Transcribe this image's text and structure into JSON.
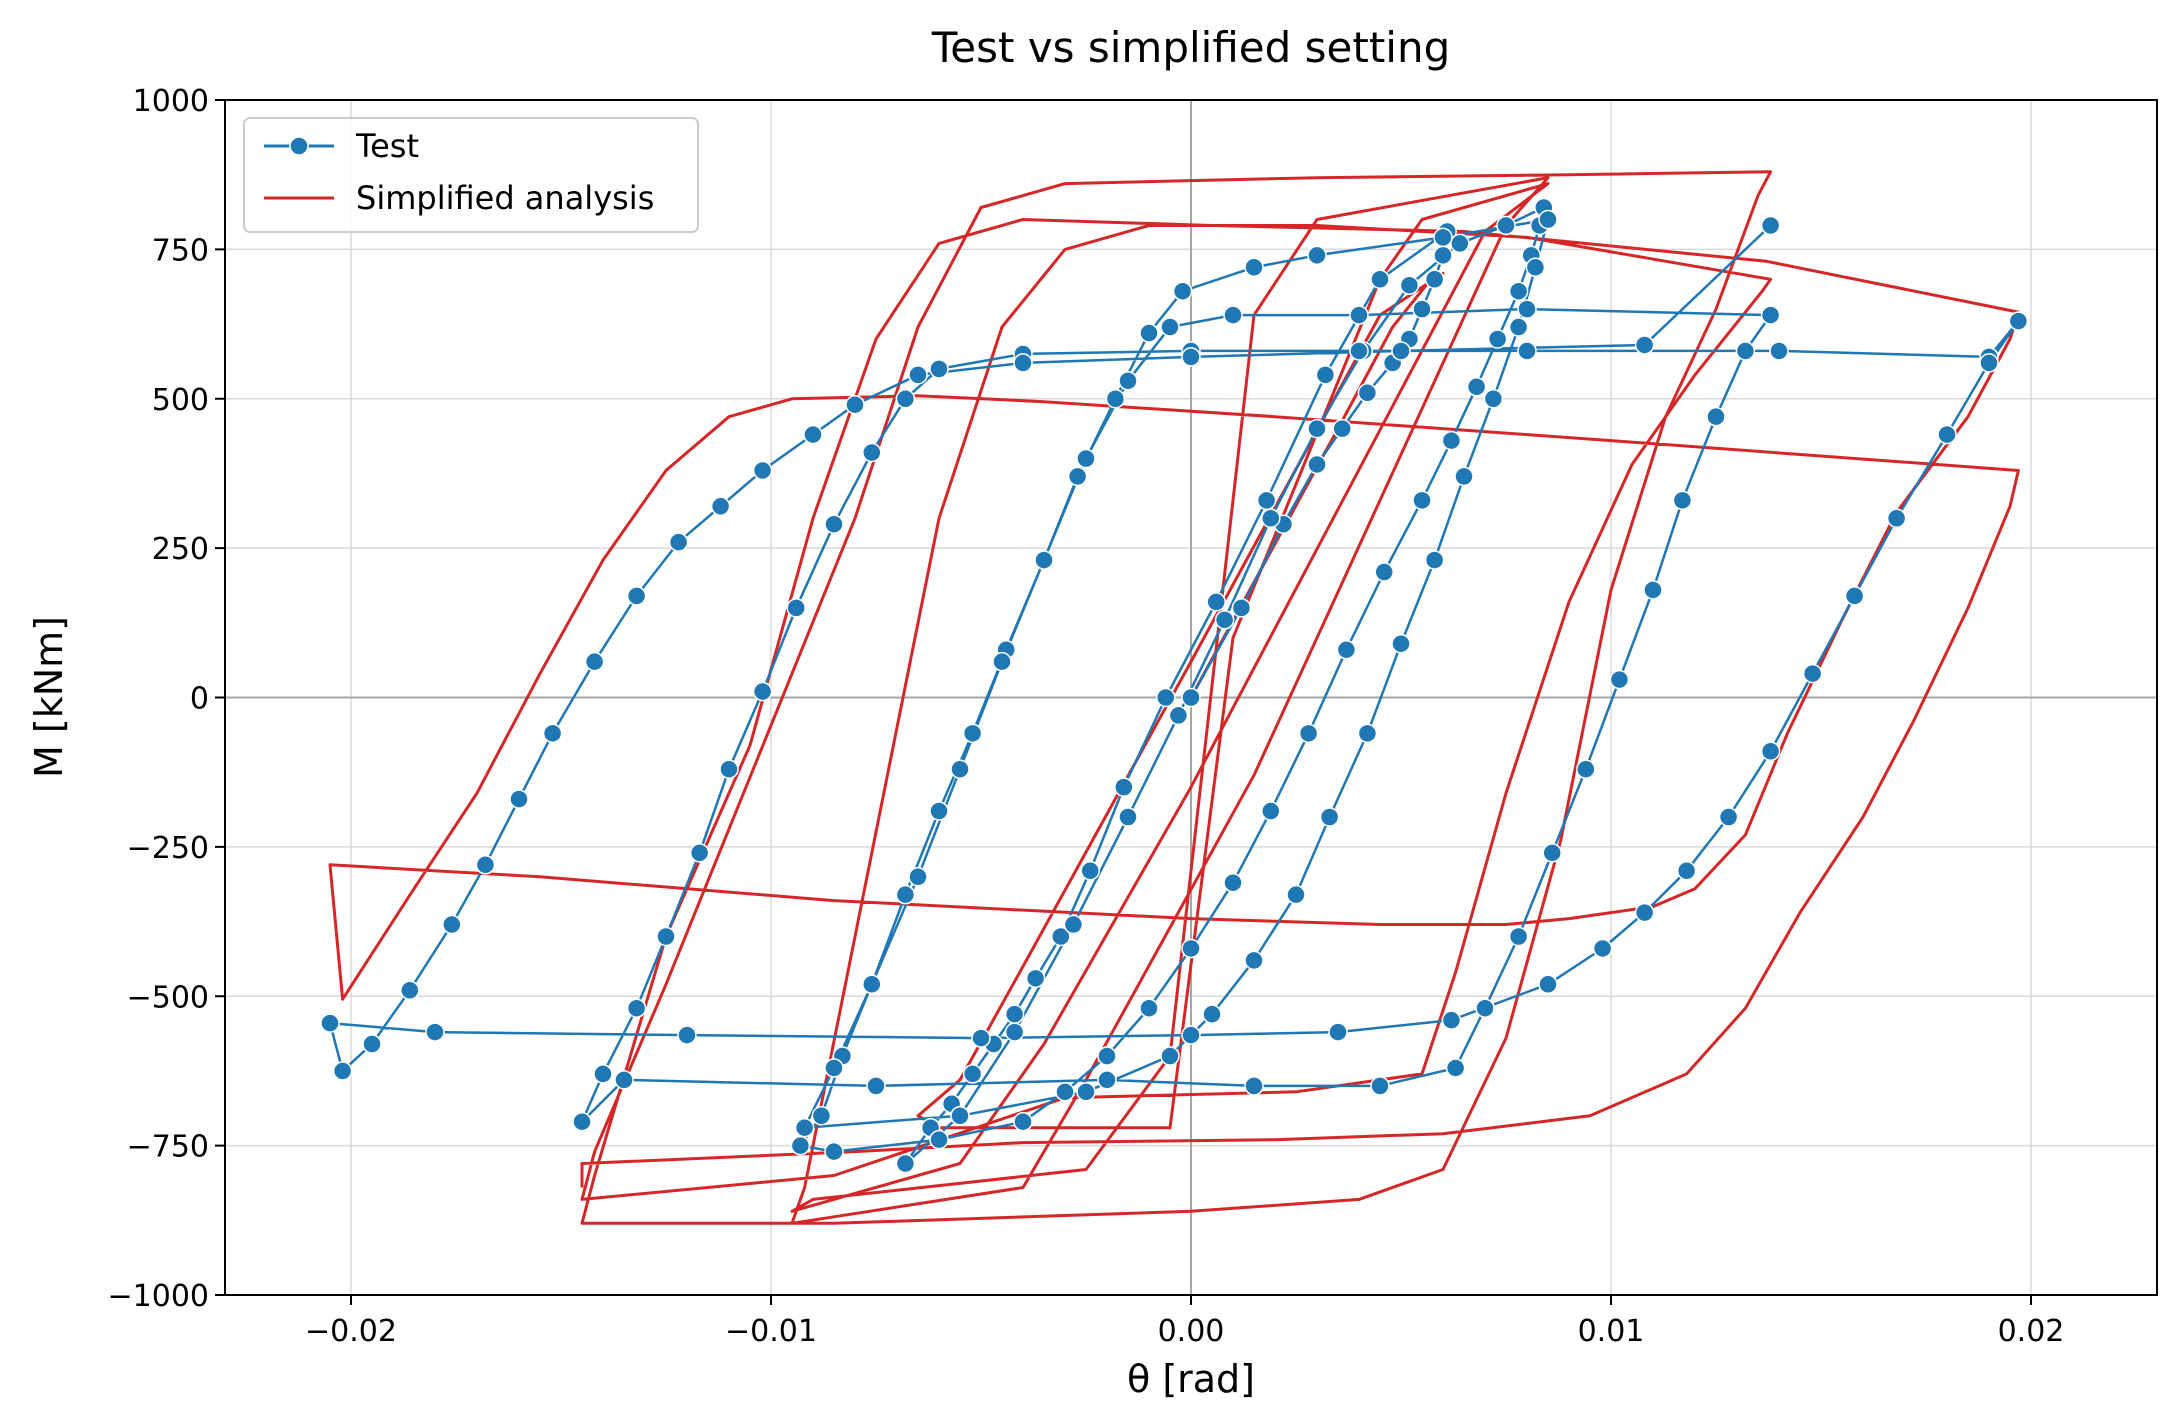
{
  "chart_data": {
    "type": "line",
    "title": "Test vs simplified setting",
    "xlabel": "θ [rad]",
    "ylabel": "M [kNm]",
    "xlim": [
      -0.023,
      0.023
    ],
    "ylim": [
      -1000,
      1000
    ],
    "xticks": [
      -0.02,
      -0.01,
      0.0,
      0.01,
      0.02
    ],
    "xtick_labels": [
      "−0.02",
      "−0.01",
      "0.00",
      "0.01",
      "0.02"
    ],
    "yticks": [
      -1000,
      -750,
      -500,
      -250,
      0,
      250,
      500,
      750,
      1000
    ],
    "ytick_labels": [
      "−1000",
      "−750",
      "−500",
      "−250",
      "0",
      "250",
      "500",
      "750",
      "1000"
    ],
    "grid": true,
    "zero_lines": true,
    "legend_position": "top-left",
    "series": [
      {
        "name": "Test",
        "color": "#1f77b4",
        "marker": "circle",
        "points": [
          [
            0.0,
            0
          ],
          [
            0.0012,
            150
          ],
          [
            0.0022,
            290
          ],
          [
            0.003,
            390
          ],
          [
            0.0036,
            450
          ],
          [
            0.0042,
            510
          ],
          [
            0.0048,
            560
          ],
          [
            0.0052,
            600
          ],
          [
            0.0055,
            650
          ],
          [
            0.0058,
            700
          ],
          [
            0.006,
            740
          ],
          [
            0.0061,
            780
          ],
          [
            0.0045,
            700
          ],
          [
            0.0032,
            540
          ],
          [
            0.0018,
            330
          ],
          [
            0.0006,
            160
          ],
          [
            -0.0006,
            0
          ],
          [
            -0.0016,
            -150
          ],
          [
            -0.0024,
            -290
          ],
          [
            -0.0031,
            -400
          ],
          [
            -0.0037,
            -470
          ],
          [
            -0.0042,
            -530
          ],
          [
            -0.0047,
            -580
          ],
          [
            -0.0052,
            -630
          ],
          [
            -0.0057,
            -680
          ],
          [
            -0.0062,
            -720
          ],
          [
            -0.0068,
            -780
          ],
          [
            -0.0055,
            -700
          ],
          [
            -0.0042,
            -560
          ],
          [
            -0.0028,
            -380
          ],
          [
            -0.0015,
            -200
          ],
          [
            -0.0003,
            -30
          ],
          [
            0.0008,
            130
          ],
          [
            0.0019,
            300
          ],
          [
            0.003,
            450
          ],
          [
            0.0041,
            580
          ],
          [
            0.0052,
            690
          ],
          [
            0.0064,
            760
          ],
          [
            0.0075,
            790
          ],
          [
            0.0084,
            820
          ],
          [
            0.0083,
            790
          ],
          [
            0.0081,
            740
          ],
          [
            0.0078,
            680
          ],
          [
            0.0073,
            600
          ],
          [
            0.0068,
            520
          ],
          [
            0.0062,
            430
          ],
          [
            0.0055,
            330
          ],
          [
            0.0046,
            210
          ],
          [
            0.0037,
            80
          ],
          [
            0.0028,
            -60
          ],
          [
            0.0019,
            -190
          ],
          [
            0.001,
            -310
          ],
          [
            0.0,
            -420
          ],
          [
            -0.001,
            -520
          ],
          [
            -0.002,
            -600
          ],
          [
            -0.003,
            -660
          ],
          [
            -0.004,
            -710
          ],
          [
            -0.006,
            -740
          ],
          [
            -0.0085,
            -760
          ],
          [
            -0.0093,
            -750
          ],
          [
            -0.0088,
            -700
          ],
          [
            -0.0083,
            -600
          ],
          [
            -0.0076,
            -480
          ],
          [
            -0.0068,
            -330
          ],
          [
            -0.006,
            -190
          ],
          [
            -0.0052,
            -60
          ],
          [
            -0.0044,
            80
          ],
          [
            -0.0035,
            230
          ],
          [
            -0.0027,
            370
          ],
          [
            -0.0018,
            500
          ],
          [
            -0.001,
            610
          ],
          [
            -0.0002,
            680
          ],
          [
            0.0015,
            720
          ],
          [
            0.003,
            740
          ],
          [
            0.006,
            770
          ],
          [
            0.0085,
            800
          ],
          [
            0.0082,
            720
          ],
          [
            0.0078,
            620
          ],
          [
            0.0072,
            500
          ],
          [
            0.0065,
            370
          ],
          [
            0.0058,
            230
          ],
          [
            0.005,
            90
          ],
          [
            0.0042,
            -60
          ],
          [
            0.0033,
            -200
          ],
          [
            0.0025,
            -330
          ],
          [
            0.0015,
            -440
          ],
          [
            0.0005,
            -530
          ],
          [
            -0.0005,
            -600
          ],
          [
            -0.0025,
            -660
          ],
          [
            -0.0055,
            -700
          ],
          [
            -0.0092,
            -720
          ],
          [
            -0.0085,
            -620
          ],
          [
            -0.0076,
            -480
          ],
          [
            -0.0065,
            -300
          ],
          [
            -0.0055,
            -120
          ],
          [
            -0.0045,
            60
          ],
          [
            -0.0035,
            230
          ],
          [
            -0.0025,
            400
          ],
          [
            -0.0015,
            530
          ],
          [
            -0.0005,
            620
          ],
          [
            0.001,
            640
          ],
          [
            0.004,
            640
          ],
          [
            0.008,
            650
          ],
          [
            0.0138,
            640
          ],
          [
            0.0132,
            580
          ],
          [
            0.0125,
            470
          ],
          [
            0.0117,
            330
          ],
          [
            0.011,
            180
          ],
          [
            0.0102,
            30
          ],
          [
            0.0094,
            -120
          ],
          [
            0.0086,
            -260
          ],
          [
            0.0078,
            -400
          ],
          [
            0.007,
            -520
          ],
          [
            0.0063,
            -620
          ],
          [
            0.0045,
            -650
          ],
          [
            0.0015,
            -650
          ],
          [
            -0.002,
            -640
          ],
          [
            -0.0075,
            -650
          ],
          [
            -0.0135,
            -640
          ],
          [
            -0.0145,
            -710
          ],
          [
            -0.014,
            -630
          ],
          [
            -0.0132,
            -520
          ],
          [
            -0.0125,
            -400
          ],
          [
            -0.0117,
            -260
          ],
          [
            -0.011,
            -120
          ],
          [
            -0.0102,
            10
          ],
          [
            -0.0094,
            150
          ],
          [
            -0.0085,
            290
          ],
          [
            -0.0076,
            410
          ],
          [
            -0.0068,
            500
          ],
          [
            -0.006,
            550
          ],
          [
            -0.004,
            575
          ],
          [
            0.0,
            580
          ],
          [
            0.004,
            580
          ],
          [
            0.008,
            580
          ],
          [
            0.014,
            580
          ],
          [
            0.019,
            570
          ],
          [
            0.0197,
            630
          ],
          [
            0.019,
            560
          ],
          [
            0.018,
            440
          ],
          [
            0.0168,
            300
          ],
          [
            0.0158,
            170
          ],
          [
            0.0148,
            40
          ],
          [
            0.0138,
            -90
          ],
          [
            0.0128,
            -200
          ],
          [
            0.0118,
            -290
          ],
          [
            0.0108,
            -360
          ],
          [
            0.0098,
            -420
          ],
          [
            0.0085,
            -480
          ],
          [
            0.0062,
            -540
          ],
          [
            0.0035,
            -560
          ],
          [
            0.0,
            -565
          ],
          [
            -0.005,
            -570
          ],
          [
            -0.012,
            -565
          ],
          [
            -0.018,
            -560
          ],
          [
            -0.0205,
            -545
          ],
          [
            -0.0202,
            -625
          ],
          [
            -0.0195,
            -580
          ],
          [
            -0.0186,
            -490
          ],
          [
            -0.0176,
            -380
          ],
          [
            -0.0168,
            -280
          ],
          [
            -0.016,
            -170
          ],
          [
            -0.0152,
            -60
          ],
          [
            -0.0142,
            60
          ],
          [
            -0.0132,
            170
          ],
          [
            -0.0122,
            260
          ],
          [
            -0.0112,
            320
          ],
          [
            -0.0102,
            380
          ],
          [
            -0.009,
            440
          ],
          [
            -0.008,
            490
          ],
          [
            -0.0065,
            540
          ],
          [
            -0.004,
            560
          ],
          [
            0.0,
            570
          ],
          [
            0.005,
            580
          ],
          [
            0.0108,
            590
          ],
          [
            0.0138,
            790
          ]
        ]
      },
      {
        "name": "Simplified analysis",
        "color": "#d62728",
        "marker": "none",
        "points": [
          [
            0.0,
            0
          ],
          [
            0.0035,
            450
          ],
          [
            0.0048,
            620
          ],
          [
            0.0056,
            690
          ],
          [
            0.006,
            710
          ],
          [
            0.0045,
            640
          ],
          [
            0.0,
            60
          ],
          [
            -0.004,
            -450
          ],
          [
            -0.0055,
            -640
          ],
          [
            -0.0065,
            -700
          ],
          [
            -0.006,
            -720
          ],
          [
            -0.0005,
            -720
          ],
          [
            0.001,
            100
          ],
          [
            0.0045,
            700
          ],
          [
            0.0055,
            800
          ],
          [
            0.0085,
            860
          ],
          [
            0.007,
            780
          ],
          [
            0.0,
            -150
          ],
          [
            -0.0035,
            -580
          ],
          [
            -0.0055,
            -780
          ],
          [
            -0.0095,
            -860
          ],
          [
            -0.009,
            -840
          ],
          [
            -0.0025,
            -790
          ],
          [
            -0.0005,
            -600
          ],
          [
            0.0015,
            640
          ],
          [
            0.003,
            800
          ],
          [
            0.0085,
            870
          ],
          [
            0.0075,
            790
          ],
          [
            0.0015,
            -130
          ],
          [
            -0.0025,
            -640
          ],
          [
            -0.004,
            -820
          ],
          [
            -0.0095,
            -880
          ],
          [
            -0.0092,
            -820
          ],
          [
            -0.006,
            300
          ],
          [
            -0.0045,
            620
          ],
          [
            -0.003,
            750
          ],
          [
            -0.001,
            790
          ],
          [
            0.003,
            790
          ],
          [
            0.008,
            770
          ],
          [
            0.0138,
            700
          ],
          [
            0.0136,
            680
          ],
          [
            0.012,
            540
          ],
          [
            0.0105,
            390
          ],
          [
            0.009,
            160
          ],
          [
            0.0075,
            -160
          ],
          [
            0.0063,
            -460
          ],
          [
            0.0055,
            -630
          ],
          [
            0.0025,
            -660
          ],
          [
            -0.003,
            -670
          ],
          [
            -0.0085,
            -800
          ],
          [
            -0.0145,
            -840
          ],
          [
            -0.0142,
            -760
          ],
          [
            -0.0125,
            -480
          ],
          [
            -0.0095,
            40
          ],
          [
            -0.008,
            300
          ],
          [
            -0.0065,
            620
          ],
          [
            -0.005,
            820
          ],
          [
            -0.003,
            860
          ],
          [
            0.003,
            870
          ],
          [
            0.009,
            875
          ],
          [
            0.0138,
            880
          ],
          [
            0.0135,
            840
          ],
          [
            0.0125,
            650
          ],
          [
            0.0113,
            470
          ],
          [
            0.01,
            180
          ],
          [
            0.0088,
            -240
          ],
          [
            0.0075,
            -570
          ],
          [
            0.006,
            -790
          ],
          [
            0.004,
            -840
          ],
          [
            0.0,
            -860
          ],
          [
            -0.0085,
            -880
          ],
          [
            -0.0145,
            -880
          ],
          [
            -0.0142,
            -800
          ],
          [
            -0.0125,
            -400
          ],
          [
            -0.0105,
            -80
          ],
          [
            -0.009,
            300
          ],
          [
            -0.0075,
            600
          ],
          [
            -0.006,
            760
          ],
          [
            -0.004,
            800
          ],
          [
            0.0005,
            790
          ],
          [
            0.0065,
            780
          ],
          [
            0.0137,
            730
          ],
          [
            0.0197,
            645
          ],
          [
            0.0195,
            600
          ],
          [
            0.0185,
            470
          ],
          [
            0.0168,
            310
          ],
          [
            0.0155,
            130
          ],
          [
            0.0142,
            -60
          ],
          [
            0.0132,
            -230
          ],
          [
            0.012,
            -320
          ],
          [
            0.011,
            -350
          ],
          [
            0.009,
            -370
          ],
          [
            0.0075,
            -380
          ],
          [
            0.0045,
            -380
          ],
          [
            0.0,
            -370
          ],
          [
            -0.0085,
            -340
          ],
          [
            -0.0155,
            -300
          ],
          [
            -0.0205,
            -280
          ],
          [
            -0.0202,
            -505
          ],
          [
            -0.0185,
            -320
          ],
          [
            -0.017,
            -160
          ],
          [
            -0.0155,
            40
          ],
          [
            -0.014,
            230
          ],
          [
            -0.0125,
            380
          ],
          [
            -0.011,
            470
          ],
          [
            -0.0095,
            500
          ],
          [
            -0.0065,
            505
          ],
          [
            -0.0035,
            495
          ],
          [
            0.002,
            470
          ],
          [
            0.01,
            430
          ],
          [
            0.0197,
            380
          ],
          [
            0.0195,
            320
          ],
          [
            0.0185,
            150
          ],
          [
            0.0172,
            -40
          ],
          [
            0.016,
            -200
          ],
          [
            0.0145,
            -360
          ],
          [
            0.0132,
            -520
          ],
          [
            0.0118,
            -630
          ],
          [
            0.0095,
            -700
          ],
          [
            0.006,
            -730
          ],
          [
            0.002,
            -740
          ],
          [
            -0.004,
            -745
          ],
          [
            -0.008,
            -760
          ],
          [
            -0.0145,
            -780
          ],
          [
            -0.0145,
            -820
          ]
        ]
      }
    ]
  }
}
